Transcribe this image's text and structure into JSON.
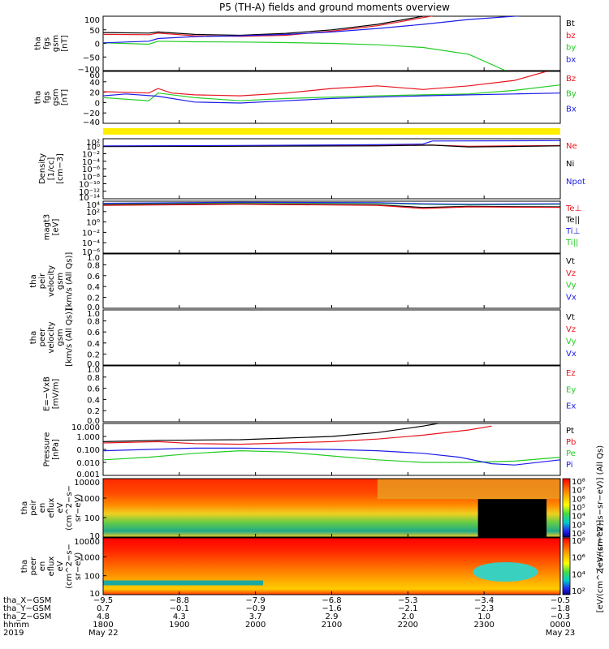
{
  "title": "P5 (TH-A) fields and ground moments overview",
  "colors": {
    "black": "#000000",
    "red": "#e8141e",
    "green": "#22cc22",
    "blue": "#1c1ce8",
    "yellow": "#ffee00"
  },
  "chart_data": [
    {
      "type": "line",
      "ylabel": [
        "tha",
        "fgs",
        "gsm",
        "[nT]"
      ],
      "yticks": [
        "100",
        "50",
        "0",
        "−50",
        "−100"
      ],
      "ylim": [
        -100,
        100
      ],
      "legend": [
        {
          "name": "Bt",
          "color": "#000000"
        },
        {
          "name": "bz",
          "color": "#e8141e"
        },
        {
          "name": "by",
          "color": "#22cc22"
        },
        {
          "name": "bx",
          "color": "#1c1ce8"
        }
      ],
      "series": [
        {
          "name": "Bt",
          "color": "#000000",
          "points": [
            [
              0,
              40
            ],
            [
              0.1,
              38
            ],
            [
              0.12,
              42
            ],
            [
              0.2,
              33
            ],
            [
              0.3,
              30
            ],
            [
              0.4,
              37
            ],
            [
              0.5,
              50
            ],
            [
              0.6,
              70
            ],
            [
              0.7,
              100
            ],
            [
              0.75,
              115
            ]
          ]
        },
        {
          "name": "bz",
          "color": "#e8141e",
          "points": [
            [
              0,
              33
            ],
            [
              0.1,
              32
            ],
            [
              0.12,
              38
            ],
            [
              0.2,
              28
            ],
            [
              0.3,
              26
            ],
            [
              0.4,
              30
            ],
            [
              0.5,
              45
            ],
            [
              0.6,
              65
            ],
            [
              0.7,
              95
            ],
            [
              0.75,
              110
            ]
          ]
        },
        {
          "name": "by",
          "color": "#22cc22",
          "points": [
            [
              0,
              2
            ],
            [
              0.1,
              -3
            ],
            [
              0.12,
              8
            ],
            [
              0.2,
              6
            ],
            [
              0.3,
              5
            ],
            [
              0.4,
              3
            ],
            [
              0.5,
              0
            ],
            [
              0.6,
              -5
            ],
            [
              0.7,
              -15
            ],
            [
              0.8,
              -40
            ],
            [
              0.88,
              -100
            ]
          ]
        },
        {
          "name": "bx",
          "color": "#1c1ce8",
          "points": [
            [
              0,
              2
            ],
            [
              0.1,
              8
            ],
            [
              0.12,
              18
            ],
            [
              0.2,
              25
            ],
            [
              0.3,
              28
            ],
            [
              0.4,
              33
            ],
            [
              0.5,
              42
            ],
            [
              0.6,
              55
            ],
            [
              0.7,
              70
            ],
            [
              0.8,
              88
            ],
            [
              0.9,
              100
            ],
            [
              1.0,
              112
            ]
          ]
        }
      ]
    },
    {
      "type": "line",
      "ylabel": [
        "tha",
        "fgs",
        "gsm",
        "[nT]"
      ],
      "yticks": [
        "60",
        "40",
        "20",
        "0",
        "−20",
        "−40"
      ],
      "ylim": [
        -55,
        60
      ],
      "legend": [
        {
          "name": "Bz",
          "color": "#e8141e"
        },
        {
          "name": "By",
          "color": "#22cc22"
        },
        {
          "name": "Bx",
          "color": "#1c1ce8"
        }
      ],
      "series": [
        {
          "name": "Bz",
          "color": "#e8141e",
          "points": [
            [
              0,
              15
            ],
            [
              0.1,
              12
            ],
            [
              0.12,
              22
            ],
            [
              0.15,
              12
            ],
            [
              0.2,
              8
            ],
            [
              0.3,
              6
            ],
            [
              0.4,
              12
            ],
            [
              0.5,
              22
            ],
            [
              0.6,
              28
            ],
            [
              0.7,
              20
            ],
            [
              0.8,
              28
            ],
            [
              0.9,
              40
            ],
            [
              0.97,
              60
            ]
          ]
        },
        {
          "name": "By",
          "color": "#22cc22",
          "points": [
            [
              0,
              2
            ],
            [
              0.1,
              -5
            ],
            [
              0.12,
              12
            ],
            [
              0.2,
              2
            ],
            [
              0.3,
              -5
            ],
            [
              0.4,
              0
            ],
            [
              0.5,
              3
            ],
            [
              0.6,
              6
            ],
            [
              0.7,
              8
            ],
            [
              0.8,
              10
            ],
            [
              0.9,
              18
            ],
            [
              1.0,
              30
            ]
          ]
        },
        {
          "name": "Bx",
          "color": "#1c1ce8",
          "points": [
            [
              0,
              6
            ],
            [
              0.05,
              10
            ],
            [
              0.12,
              5
            ],
            [
              0.2,
              -8
            ],
            [
              0.3,
              -10
            ],
            [
              0.4,
              -5
            ],
            [
              0.5,
              0
            ],
            [
              0.6,
              3
            ],
            [
              0.7,
              6
            ],
            [
              0.8,
              8
            ],
            [
              0.9,
              10
            ],
            [
              1.0,
              12
            ]
          ]
        }
      ]
    },
    {
      "type": "heatmap",
      "note": "thin status bar"
    },
    {
      "type": "line",
      "ylabel": [
        "Density",
        "[1/cc]",
        "[cm−3]"
      ],
      "yticks": [
        "10²",
        "10⁰",
        "10⁻²",
        "10⁻⁴",
        "10⁻⁶",
        "10⁻⁸",
        "10⁻¹⁰",
        "10⁻¹²",
        "10⁻¹⁴"
      ],
      "ylog": true,
      "legend": [
        {
          "name": "Ne",
          "color": "#e8141e"
        },
        {
          "name": "Ni",
          "color": "#000000"
        },
        {
          "name": "Npot",
          "color": "#1c1ce8"
        }
      ],
      "series": [
        {
          "name": "Ne",
          "color": "#e8141e",
          "points": [
            [
              0,
              0
            ],
            [
              0.3,
              0.1
            ],
            [
              0.6,
              0.3
            ],
            [
              0.72,
              0.3
            ],
            [
              0.8,
              0
            ],
            [
              1.0,
              0.2
            ]
          ]
        },
        {
          "name": "Ni",
          "color": "#000000",
          "points": [
            [
              0,
              -0.1
            ],
            [
              0.3,
              0
            ],
            [
              0.6,
              0.1
            ],
            [
              0.72,
              0.3
            ],
            [
              0.8,
              -0.2
            ],
            [
              1.0,
              0.1
            ]
          ]
        },
        {
          "name": "Npot",
          "color": "#1c1ce8",
          "points": [
            [
              0,
              0.1
            ],
            [
              0.3,
              0.2
            ],
            [
              0.6,
              0.4
            ],
            [
              0.7,
              0.6
            ],
            [
              0.72,
              1.4
            ],
            [
              1.0,
              1.5
            ]
          ]
        }
      ]
    },
    {
      "type": "line",
      "ylabel": [
        "magt3",
        "[eV]"
      ],
      "yticks": [
        "10⁴",
        "10²",
        "10⁰",
        "10⁻²",
        "10⁻⁴",
        "10⁻⁶"
      ],
      "ylog": true,
      "legend": [
        {
          "name": "Te⊥",
          "color": "#e8141e"
        },
        {
          "name": "Te||",
          "color": "#000000"
        },
        {
          "name": "Ti⊥",
          "color": "#1c1ce8"
        },
        {
          "name": "Ti||",
          "color": "#22cc22"
        }
      ],
      "series": [
        {
          "name": "Ti||",
          "color": "#22cc22",
          "points": [
            [
              0,
              3.5
            ],
            [
              0.3,
              3.7
            ],
            [
              0.6,
              3.6
            ],
            [
              0.7,
              3.4
            ],
            [
              0.8,
              3.3
            ],
            [
              1.0,
              3.4
            ]
          ]
        },
        {
          "name": "Ti⊥",
          "color": "#1c1ce8",
          "points": [
            [
              0,
              3.6
            ],
            [
              0.3,
              3.8
            ],
            [
              0.6,
              3.7
            ],
            [
              0.7,
              3.5
            ],
            [
              0.8,
              3.4
            ],
            [
              1.0,
              3.5
            ]
          ]
        },
        {
          "name": "Te||",
          "color": "#000000",
          "points": [
            [
              0,
              3.3
            ],
            [
              0.3,
              3.5
            ],
            [
              0.6,
              3.3
            ],
            [
              0.7,
              2.8
            ],
            [
              0.8,
              3.0
            ],
            [
              1.0,
              2.9
            ]
          ]
        },
        {
          "name": "Te⊥",
          "color": "#e8141e",
          "points": [
            [
              0,
              3.2
            ],
            [
              0.3,
              3.4
            ],
            [
              0.6,
              3.2
            ],
            [
              0.7,
              2.6
            ],
            [
              0.8,
              2.9
            ],
            [
              1.0,
              2.8
            ]
          ]
        }
      ]
    },
    {
      "type": "line",
      "ylabel": [
        "tha",
        "peir",
        "velocity",
        "gsm",
        "[km/s (All Qs)]"
      ],
      "yticks": [
        "1.0",
        "0.8",
        "0.6",
        "0.4",
        "0.2",
        "0.0"
      ],
      "legend": [
        {
          "name": "Vt",
          "color": "#000000"
        },
        {
          "name": "Vz",
          "color": "#e8141e"
        },
        {
          "name": "Vy",
          "color": "#22cc22"
        },
        {
          "name": "Vx",
          "color": "#1c1ce8"
        }
      ],
      "series": []
    },
    {
      "type": "line",
      "ylabel": [
        "tha",
        "peer",
        "velocity",
        "gsm",
        "[km/s (All Qs)]"
      ],
      "yticks": [
        "1.0",
        "0.8",
        "0.6",
        "0.4",
        "0.2",
        "0.0"
      ],
      "legend": [
        {
          "name": "Vt",
          "color": "#000000"
        },
        {
          "name": "Vz",
          "color": "#e8141e"
        },
        {
          "name": "Vy",
          "color": "#22cc22"
        },
        {
          "name": "Vx",
          "color": "#1c1ce8"
        }
      ],
      "series": []
    },
    {
      "type": "line",
      "ylabel": [
        "E=−VxB",
        "[mV/m]"
      ],
      "yticks": [
        "1.0",
        "0.8",
        "0.6",
        "0.4",
        "0.2",
        "0.0"
      ],
      "legend": [
        {
          "name": "Ez",
          "color": "#e8141e"
        },
        {
          "name": "Ey",
          "color": "#22cc22"
        },
        {
          "name": "Ex",
          "color": "#1c1ce8"
        }
      ],
      "series": []
    },
    {
      "type": "line",
      "ylabel": [
        "Pressure",
        "[nPa]"
      ],
      "yticks": [
        "10.000",
        "1.000",
        "0.100",
        "0.010",
        "0.001"
      ],
      "ylog": true,
      "legend": [
        {
          "name": "Pt",
          "color": "#000000"
        },
        {
          "name": "Pb",
          "color": "#e8141e"
        },
        {
          "name": "Pe",
          "color": "#22cc22"
        },
        {
          "name": "Pi",
          "color": "#1c1ce8"
        }
      ],
      "series": [
        {
          "name": "Pt",
          "color": "#000000",
          "points": [
            [
              0,
              -0.4
            ],
            [
              0.12,
              -0.3
            ],
            [
              0.3,
              -0.25
            ],
            [
              0.5,
              0
            ],
            [
              0.6,
              0.3
            ],
            [
              0.7,
              0.8
            ],
            [
              0.8,
              1.4
            ],
            [
              0.85,
              1.8
            ]
          ]
        },
        {
          "name": "Pb",
          "color": "#e8141e",
          "points": [
            [
              0,
              -0.5
            ],
            [
              0.12,
              -0.4
            ],
            [
              0.2,
              -0.55
            ],
            [
              0.3,
              -0.6
            ],
            [
              0.5,
              -0.4
            ],
            [
              0.6,
              -0.2
            ],
            [
              0.7,
              0.1
            ],
            [
              0.8,
              0.5
            ],
            [
              0.85,
              0.8
            ]
          ]
        },
        {
          "name": "Pe",
          "color": "#22cc22",
          "points": [
            [
              0,
              -1.8
            ],
            [
              0.1,
              -1.6
            ],
            [
              0.2,
              -1.3
            ],
            [
              0.3,
              -1.1
            ],
            [
              0.4,
              -1.2
            ],
            [
              0.5,
              -1.5
            ],
            [
              0.6,
              -1.8
            ],
            [
              0.7,
              -2.0
            ],
            [
              0.8,
              -2.0
            ],
            [
              0.9,
              -1.9
            ],
            [
              1.0,
              -1.6
            ]
          ]
        },
        {
          "name": "Pi",
          "color": "#1c1ce8",
          "points": [
            [
              0,
              -1.1
            ],
            [
              0.1,
              -1.0
            ],
            [
              0.2,
              -0.9
            ],
            [
              0.3,
              -0.9
            ],
            [
              0.4,
              -0.95
            ],
            [
              0.5,
              -1.0
            ],
            [
              0.6,
              -1.1
            ],
            [
              0.7,
              -1.3
            ],
            [
              0.78,
              -1.6
            ],
            [
              0.85,
              -2.1
            ],
            [
              0.9,
              -2.2
            ],
            [
              1.0,
              -1.8
            ]
          ]
        }
      ]
    },
    {
      "type": "heatmap",
      "ylabel": [
        "tha",
        "peir",
        "en",
        "eflux",
        "eV",
        "(cm^2−s−",
        "sr−eV)"
      ],
      "yticks": [
        "10000",
        "1000",
        "100",
        "10"
      ],
      "colorbar_label": "[eV/(cm^2−s−sr−eV)] (All Qs)",
      "colorbar_ticks": [
        "10⁸",
        "10⁷",
        "10⁶",
        "10⁵",
        "10⁴",
        "10³",
        "10²"
      ]
    },
    {
      "type": "heatmap",
      "ylabel": [
        "tha",
        "peer",
        "en",
        "eflux",
        "eV",
        "(cm^2−s−",
        "sr−eV)"
      ],
      "yticks": [
        "10000",
        "1000",
        "100",
        "10"
      ],
      "colorbar_label": "[eV/(cm^2−s−sr−eV)]",
      "colorbar_ticks": [
        "10⁸",
        "10⁶",
        "10⁴",
        "10²"
      ]
    }
  ],
  "x_axis": {
    "row_labels": [
      "tha_X−GSM",
      "tha_Y−GSM",
      "tha_Z−GSM",
      "hhmm",
      "2019"
    ],
    "columns": [
      [
        "−9.5",
        "0.7",
        "4.8",
        "1800",
        "May 22"
      ],
      [
        "−8.8",
        "−0.1",
        "4.3",
        "1900",
        ""
      ],
      [
        "−7.9",
        "−0.9",
        "3.7",
        "2000",
        ""
      ],
      [
        "−6.8",
        "−1.6",
        "2.9",
        "2100",
        ""
      ],
      [
        "−5.3",
        "−2.1",
        "2.0",
        "2200",
        ""
      ],
      [
        "−3.4",
        "−2.3",
        "1.0",
        "2300",
        ""
      ],
      [
        "−0.5",
        "−1.8",
        "−0.3",
        "0000",
        "May 23"
      ]
    ]
  }
}
